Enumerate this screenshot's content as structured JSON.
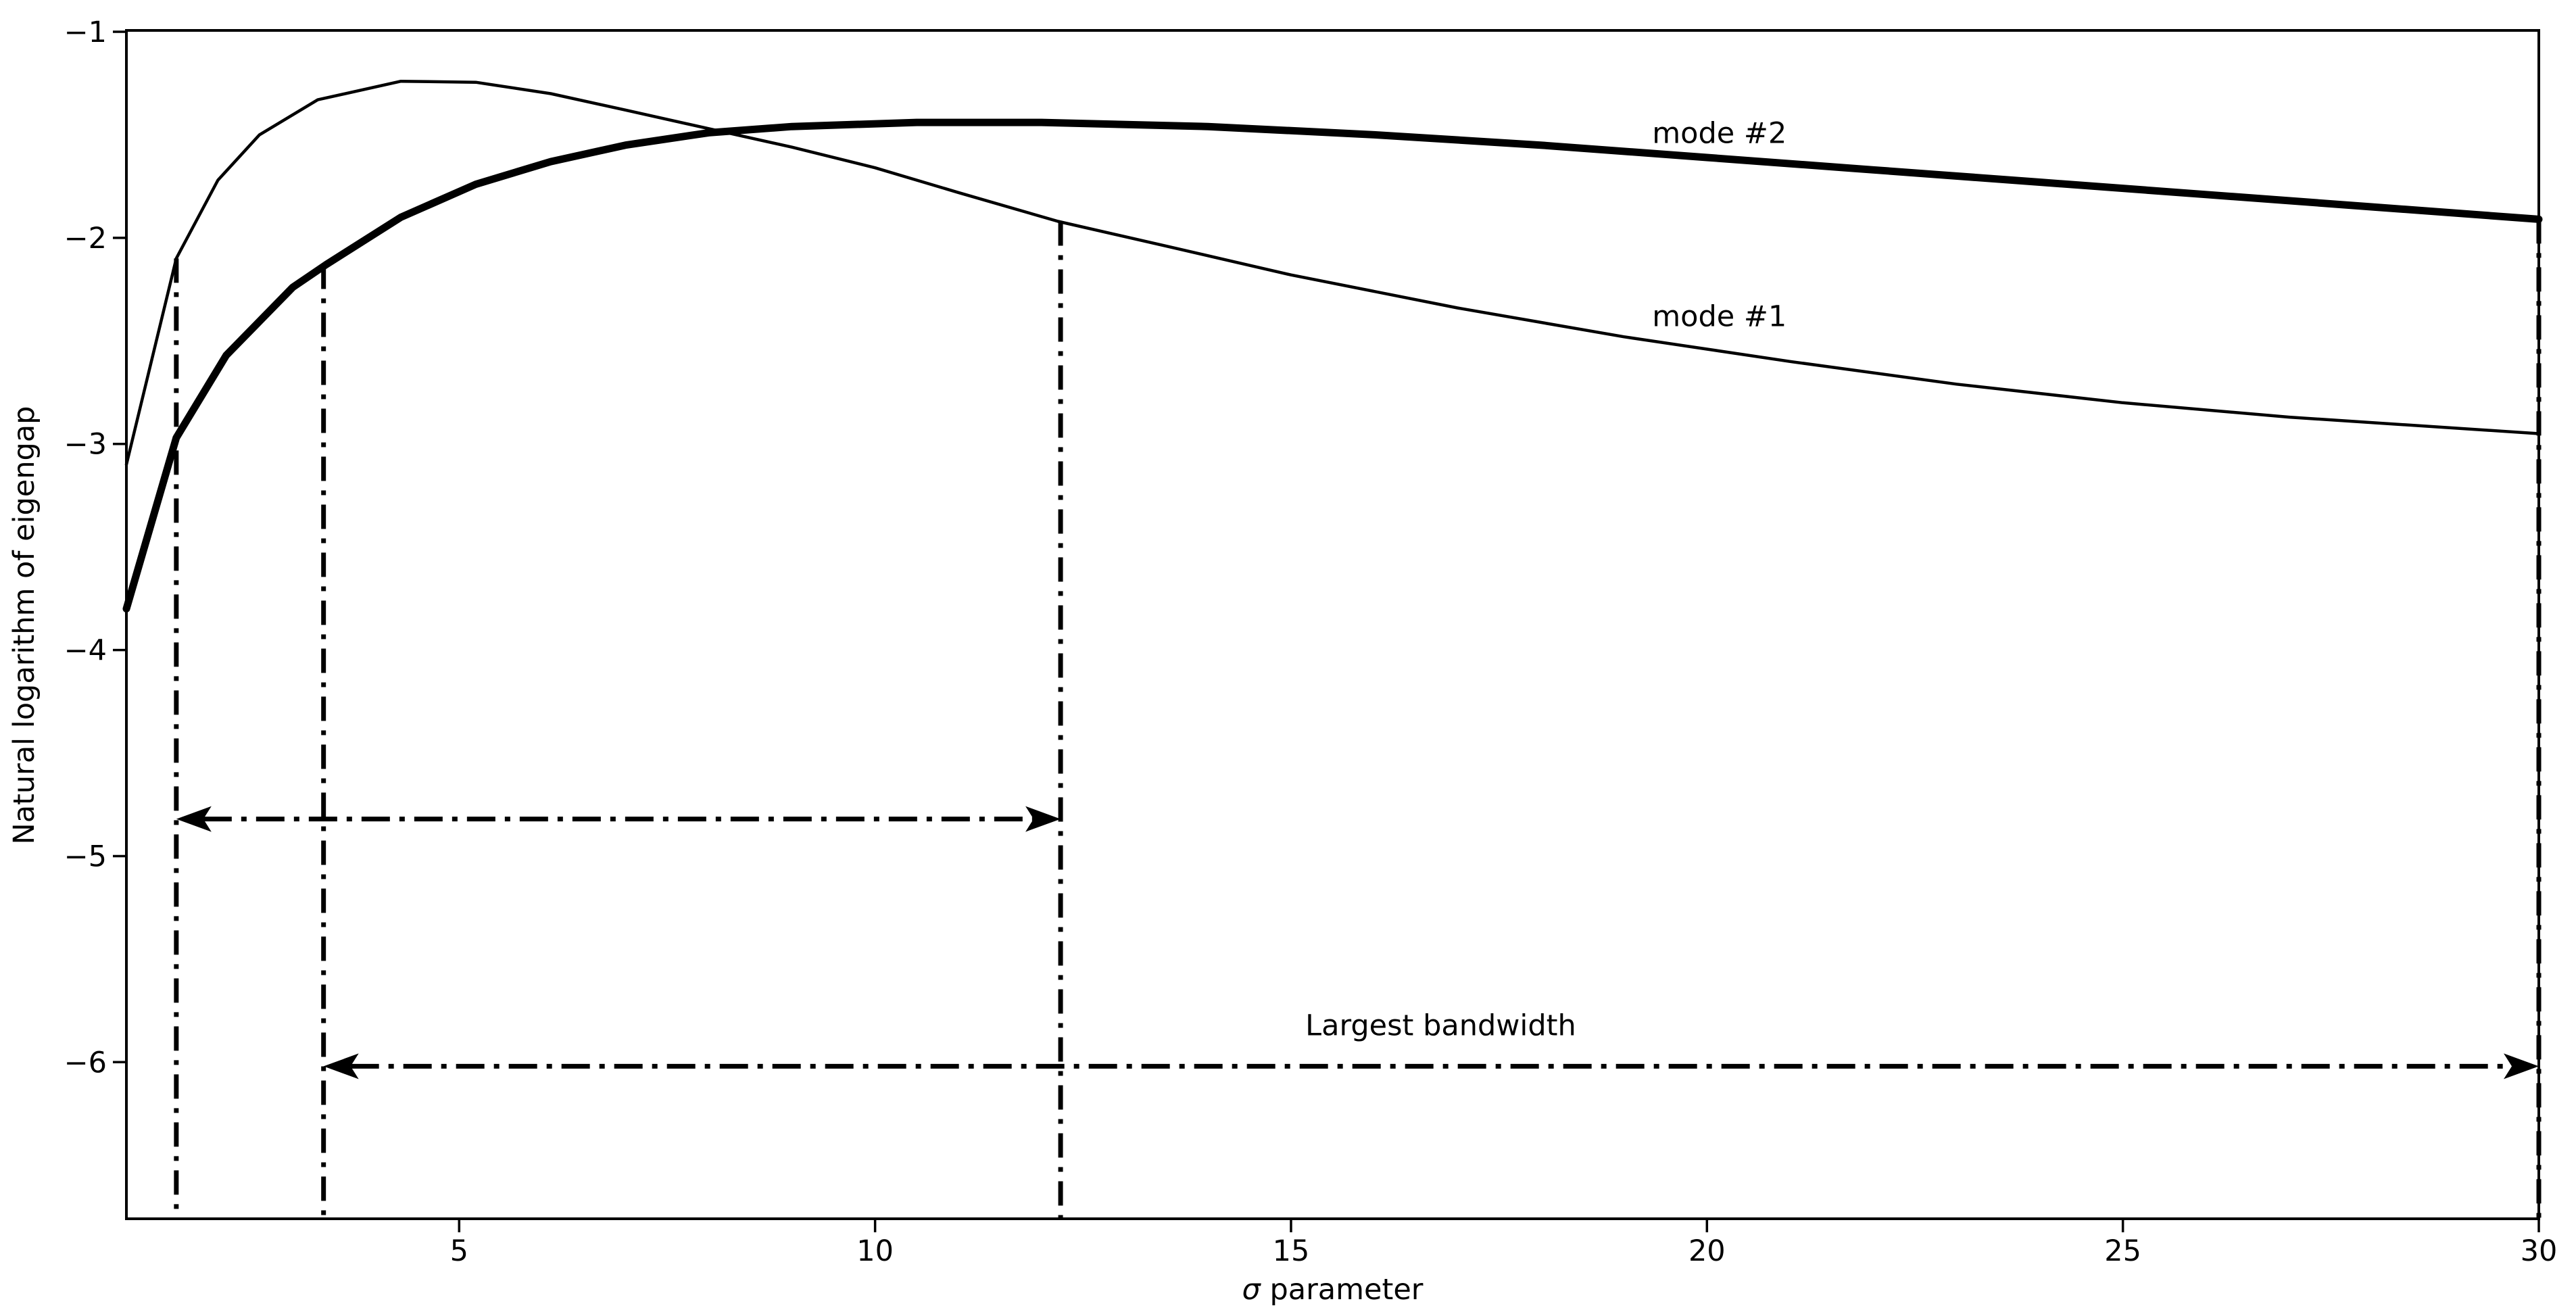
{
  "figure": {
    "background": "#ffffff",
    "line_color": "#000000"
  },
  "chart_data": {
    "type": "line",
    "title": "",
    "xlabel": "σ parameter",
    "xlabel_sigma": "σ",
    "xlabel_rest": " parameter",
    "ylabel": "Natural logarithm of eigengap",
    "xlim": [
      1,
      30
    ],
    "ylim": [
      -6.76,
      -1
    ],
    "grid": false,
    "legend_position": "none",
    "xticks": [
      5,
      10,
      15,
      20,
      25,
      30
    ],
    "xtick_labels": [
      "5",
      "10",
      "15",
      "20",
      "25",
      "30"
    ],
    "yticks": [
      -1,
      -2,
      -3,
      -4,
      -5,
      -6
    ],
    "ytick_labels": [
      "−1",
      "−2",
      "−3",
      "−4",
      "−5",
      "−6"
    ],
    "series": [
      {
        "name": "mode #1",
        "style": "thin",
        "x": [
          1.0,
          1.6,
          2.1,
          2.6,
          3.3,
          4.3,
          5.2,
          6.1,
          7.0,
          8.0,
          9.0,
          10.0,
          11.0,
          12.2,
          13.5,
          15.0,
          17.0,
          19.0,
          21.0,
          23.0,
          25.0,
          27.0,
          30.0
        ],
        "y": [
          -3.1,
          -2.1,
          -1.72,
          -1.5,
          -1.33,
          -1.24,
          -1.245,
          -1.3,
          -1.38,
          -1.47,
          -1.56,
          -1.66,
          -1.78,
          -1.92,
          -2.04,
          -2.18,
          -2.34,
          -2.48,
          -2.6,
          -2.71,
          -2.8,
          -2.87,
          -2.95
        ]
      },
      {
        "name": "mode #2",
        "style": "thick",
        "x": [
          1.0,
          1.6,
          2.2,
          3.0,
          3.4,
          4.3,
          5.2,
          6.1,
          7.0,
          8.0,
          9.0,
          10.5,
          12.0,
          14.0,
          16.0,
          18.0,
          20.0,
          22.0,
          24.0,
          26.0,
          28.0,
          30.0
        ],
        "y": [
          -3.8,
          -2.97,
          -2.57,
          -2.24,
          -2.13,
          -1.9,
          -1.74,
          -1.63,
          -1.55,
          -1.49,
          -1.46,
          -1.44,
          -1.44,
          -1.46,
          -1.5,
          -1.55,
          -1.61,
          -1.67,
          -1.73,
          -1.79,
          -1.85,
          -1.91
        ]
      }
    ],
    "annotations": [
      {
        "id": "mode-2",
        "text": "mode #2",
        "x": 20.15,
        "y": -1.49
      },
      {
        "id": "mode-1",
        "text": "mode #1",
        "x": 20.15,
        "y": -2.38
      },
      {
        "id": "largest-bandwidth",
        "text": "Largest bandwidth",
        "x": 16.8,
        "y": -5.82
      }
    ],
    "bandwidth_markers": {
      "vertical_lines": [
        {
          "x": 1.6,
          "y_top": -2.1
        },
        {
          "x": 3.37,
          "y_top": -2.13
        },
        {
          "x": 12.23,
          "y_top": -1.92
        },
        {
          "x": 30.0,
          "y_top": -1.91
        }
      ],
      "arrows": [
        {
          "y": -4.82,
          "x_start": 1.6,
          "x_end": 12.23
        },
        {
          "y": -6.02,
          "x_start": 3.37,
          "x_end": 30.0
        }
      ]
    }
  }
}
